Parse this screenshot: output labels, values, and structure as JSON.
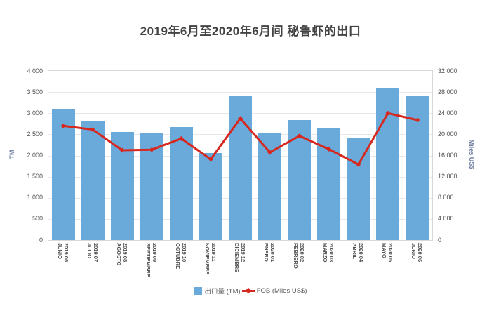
{
  "chart_data": {
    "type": "bar",
    "title": "2019年6月至2020年6月间 秘鲁虾的出口",
    "categories": [
      {
        "period": "2019 06",
        "month": "JUNIO"
      },
      {
        "period": "2019 07",
        "month": "JULIO"
      },
      {
        "period": "2019 08",
        "month": "AGOSTO"
      },
      {
        "period": "2019 09",
        "month": "SEPTIEMBRE"
      },
      {
        "period": "2019 10",
        "month": "OCTUBRE"
      },
      {
        "period": "2019 11",
        "month": "NOVIEMBRE"
      },
      {
        "period": "2019 12",
        "month": "DICIEMBRE"
      },
      {
        "period": "2020 01",
        "month": "ENERO"
      },
      {
        "period": "2020 02",
        "month": "FEBRERO"
      },
      {
        "period": "2020 03",
        "month": "MARZO"
      },
      {
        "period": "2020 04",
        "month": "ABRIL"
      },
      {
        "period": "2020 05",
        "month": "MAYO"
      },
      {
        "period": "2020 06",
        "month": "JUNIO"
      }
    ],
    "series": [
      {
        "name": "出口量 (TM)",
        "kind": "bar",
        "axis": "left",
        "color": "#69AADA",
        "values": [
          3100,
          2830,
          2550,
          2530,
          2680,
          2060,
          3400,
          2530,
          2840,
          2650,
          2400,
          3600,
          3400
        ]
      },
      {
        "name": "FOB (Miles US$)",
        "kind": "line",
        "axis": "right",
        "color": "#D6281E",
        "values": [
          21600,
          20900,
          17000,
          17100,
          19200,
          15300,
          23000,
          16600,
          19700,
          17200,
          14300,
          24000,
          22700
        ]
      }
    ],
    "left_axis": {
      "label": "TM",
      "min": 0,
      "max": 4000,
      "step": 500
    },
    "right_axis": {
      "label": "Miles US$",
      "min": 0,
      "max": 32000,
      "step": 4000
    },
    "grid": true,
    "legend_position": "bottom"
  },
  "colors": {
    "bar": "#69AADA",
    "line": "#D6281E",
    "title_text": "#434343",
    "axis_name_text": "#7380A6",
    "tick_text": "#4F4F4F",
    "legend_text": "#595959",
    "gridline": "#E8E8E8",
    "plot_border": "#D8D8D8",
    "background": "#FFFFFF"
  }
}
